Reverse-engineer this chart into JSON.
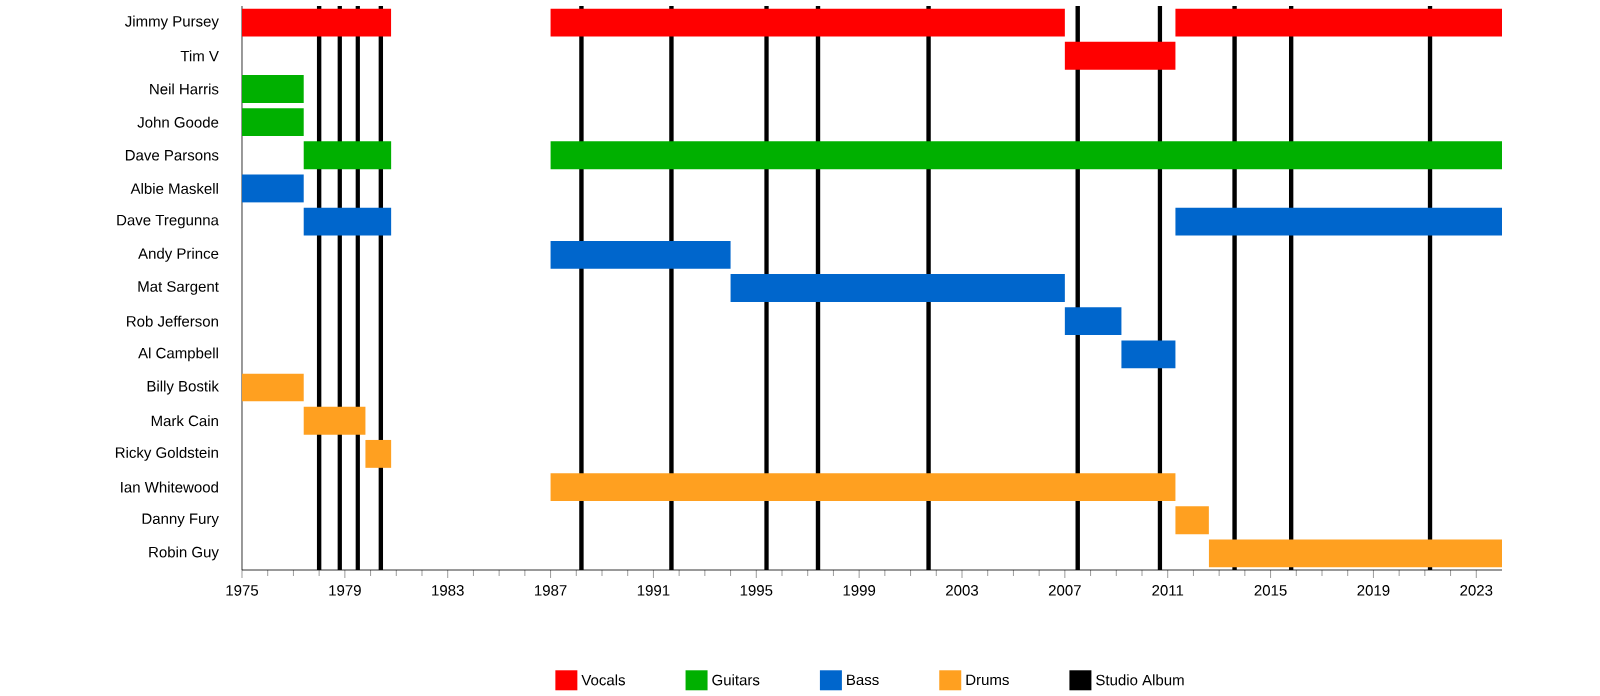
{
  "chart_data": {
    "type": "bar",
    "orientation": "horizontal",
    "legend": "bottom",
    "categories": [
      "Jimmy Pursey",
      "Tim V",
      "Neil Harris",
      "John Goode",
      "Dave Parsons",
      "Albie Maskell",
      "Dave Tregunna",
      "Andy Prince",
      "Mat Sargent",
      "Rob Jefferson",
      "Al Campbell",
      "Billy Bostik",
      "Mark Cain",
      "Ricky Goldstein",
      "Ian Whitewood",
      "Danny Fury",
      "Robin Guy"
    ],
    "xlim": [
      1975,
      2024
    ],
    "xticks": [
      1975,
      1979,
      1983,
      1987,
      1991,
      1995,
      1999,
      2003,
      2007,
      2011,
      2015,
      2019,
      2023
    ],
    "series": [
      {
        "name": "Vocals",
        "color": "#ff0000",
        "base": [
          1975,
          2007,
          null,
          null,
          null,
          null,
          null,
          null,
          null,
          null,
          null,
          null,
          null,
          null,
          null,
          null,
          null
        ],
        "values": [
          5.8,
          4.3,
          null,
          null,
          null,
          null,
          null,
          null,
          null,
          null,
          null,
          null,
          null,
          null,
          null,
          null,
          null
        ]
      },
      {
        "color": "#ff0000",
        "base": [
          1987,
          null,
          null,
          null,
          null,
          null,
          null,
          null,
          null,
          null,
          null,
          null,
          null,
          null,
          null,
          null,
          null
        ],
        "values": [
          20,
          null,
          null,
          null,
          null,
          null,
          null,
          null,
          null,
          null,
          null,
          null,
          null,
          null,
          null,
          null,
          null
        ]
      },
      {
        "color": "#ff0000",
        "base": [
          2011.3,
          null,
          null,
          null,
          null,
          null,
          null,
          null,
          null,
          null,
          null,
          null,
          null,
          null,
          null,
          null,
          null
        ],
        "values": [
          12.7,
          null,
          null,
          null,
          null,
          null,
          null,
          null,
          null,
          null,
          null,
          null,
          null,
          null,
          null,
          null,
          null
        ]
      },
      {
        "name": "Guitars",
        "color": "#00b000",
        "base": [
          null,
          null,
          1975,
          1975,
          1977.4,
          null,
          null,
          null,
          null,
          null,
          null,
          null,
          null,
          null,
          null,
          null,
          null
        ],
        "values": [
          null,
          null,
          2.4,
          2.4,
          3.4,
          null,
          null,
          null,
          null,
          null,
          null,
          null,
          null,
          null,
          null,
          null,
          null
        ]
      },
      {
        "color": "#00b000",
        "base": [
          null,
          null,
          null,
          null,
          1987,
          null,
          null,
          null,
          null,
          null,
          null,
          null,
          null,
          null,
          null,
          null,
          null
        ],
        "values": [
          null,
          null,
          null,
          null,
          37,
          null,
          null,
          null,
          null,
          null,
          null,
          null,
          null,
          null,
          null,
          null,
          null
        ]
      },
      {
        "name": "Bass",
        "color": "#0066cc",
        "base": [
          null,
          null,
          null,
          null,
          null,
          1975,
          1977.4,
          1987,
          1994,
          2007,
          2009.2,
          null,
          null,
          null,
          null,
          null,
          null
        ],
        "values": [
          null,
          null,
          null,
          null,
          null,
          2.4,
          3.4,
          7,
          13,
          2.2,
          2.1,
          null,
          null,
          null,
          null,
          null,
          null
        ]
      },
      {
        "color": "#0066cc",
        "base": [
          null,
          null,
          null,
          null,
          null,
          null,
          2011.3,
          null,
          null,
          null,
          null,
          null,
          null,
          null,
          null,
          null,
          null
        ],
        "values": [
          null,
          null,
          null,
          null,
          null,
          null,
          12.7,
          null,
          null,
          null,
          null,
          null,
          null,
          null,
          null,
          null,
          null
        ]
      },
      {
        "name": "Drums",
        "color": "#ffa020",
        "base": [
          null,
          null,
          null,
          null,
          null,
          null,
          null,
          null,
          null,
          null,
          null,
          1975,
          1977.4,
          1979.8,
          1987,
          2011.3,
          2012.6
        ],
        "values": [
          null,
          null,
          null,
          null,
          null,
          null,
          null,
          null,
          null,
          null,
          null,
          2.4,
          2.4,
          1,
          24.3,
          1.3,
          11.4
        ]
      }
    ],
    "ref_lines": [
      {
        "axis": "x",
        "value": 1978,
        "color": "#000000",
        "label": "Studio Album"
      },
      {
        "axis": "x",
        "value": 1978.8,
        "color": "#000000"
      },
      {
        "axis": "x",
        "value": 1979.5,
        "color": "#000000"
      },
      {
        "axis": "x",
        "value": 1980.4,
        "color": "#000000"
      },
      {
        "axis": "x",
        "value": 1988.2,
        "color": "#000000"
      },
      {
        "axis": "x",
        "value": 1991.7,
        "color": "#000000"
      },
      {
        "axis": "x",
        "value": 1995.4,
        "color": "#000000"
      },
      {
        "axis": "x",
        "value": 1997.4,
        "color": "#000000"
      },
      {
        "axis": "x",
        "value": 2001.7,
        "color": "#000000"
      },
      {
        "axis": "x",
        "value": 2007.5,
        "color": "#000000"
      },
      {
        "axis": "x",
        "value": 2010.7,
        "color": "#000000"
      },
      {
        "axis": "x",
        "value": 2013.6,
        "color": "#000000"
      },
      {
        "axis": "x",
        "value": 2015.8,
        "color": "#000000"
      },
      {
        "axis": "x",
        "value": 2021.2,
        "color": "#000000"
      }
    ]
  }
}
